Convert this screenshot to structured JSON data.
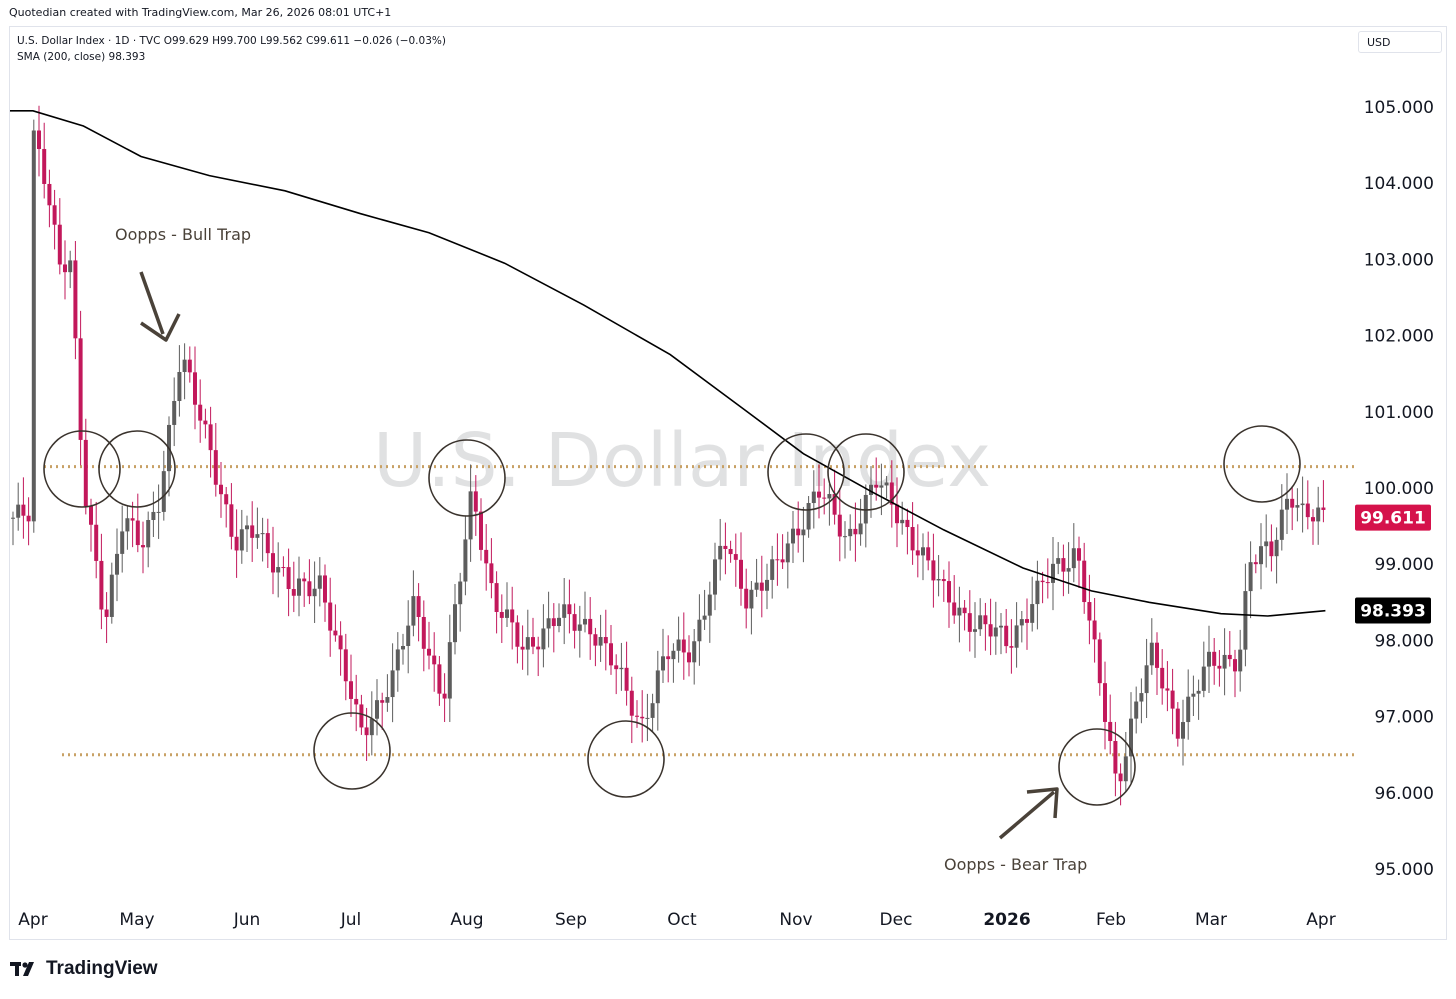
{
  "header": {
    "attribution": "Quotedian created with TradingView.com, Mar 26, 2026 08:01 UTC+1"
  },
  "legend": {
    "symbol_line": "U.S. Dollar Index · 1D · TVC  O99.629  H99.700  L99.562  C99.611  −0.026 (−0.03%)",
    "sma_line": "SMA (200, close)  98.393"
  },
  "currency_label": "USD",
  "watermark": "U.S. Dollar Index",
  "footer": {
    "brand": "TradingView"
  },
  "colors": {
    "up": "#5d5d5d",
    "down": "#c2185b",
    "sma": "#000000",
    "level": "#c8a165",
    "last_price_bg": "#d5124b"
  },
  "chart_data": {
    "type": "candlestick",
    "title": "U.S. Dollar Index",
    "ylim": [
      94.5,
      105.5
    ],
    "y_ticks": [
      "105.000",
      "104.000",
      "103.000",
      "102.000",
      "101.000",
      "100.000",
      "99.000",
      "98.000",
      "97.000",
      "96.000",
      "95.000"
    ],
    "x_labels": [
      "Apr",
      "May",
      "Jun",
      "Jul",
      "Aug",
      "Sep",
      "Oct",
      "Nov",
      "Dec",
      "2026",
      "Feb",
      "Mar",
      "Apr"
    ],
    "last_price": {
      "label": "99.611",
      "value": 99.611
    },
    "sma_label": {
      "label": "98.393",
      "value": 98.393
    },
    "levels": [
      100.28,
      96.5
    ],
    "annotations": [
      {
        "text": "Oopps - Bull Trap"
      },
      {
        "text": "Oopps - Bear Trap"
      }
    ],
    "sma_series": [
      {
        "d": "2025-04-01",
        "v": 104.95
      },
      {
        "d": "2025-04-15",
        "v": 104.75
      },
      {
        "d": "2025-05-01",
        "v": 104.35
      },
      {
        "d": "2025-05-20",
        "v": 104.1
      },
      {
        "d": "2025-06-10",
        "v": 103.9
      },
      {
        "d": "2025-07-01",
        "v": 103.6
      },
      {
        "d": "2025-07-20",
        "v": 103.35
      },
      {
        "d": "2025-08-10",
        "v": 102.95
      },
      {
        "d": "2025-09-01",
        "v": 102.4
      },
      {
        "d": "2025-09-25",
        "v": 101.75
      },
      {
        "d": "2025-10-15",
        "v": 101.05
      },
      {
        "d": "2025-11-01",
        "v": 100.45
      },
      {
        "d": "2025-11-20",
        "v": 99.95
      },
      {
        "d": "2025-12-10",
        "v": 99.45
      },
      {
        "d": "2026-01-01",
        "v": 98.95
      },
      {
        "d": "2026-01-20",
        "v": 98.65
      },
      {
        "d": "2026-02-05",
        "v": 98.5
      },
      {
        "d": "2026-02-25",
        "v": 98.35
      },
      {
        "d": "2026-03-10",
        "v": 98.32
      },
      {
        "d": "2026-03-26",
        "v": 98.39
      }
    ],
    "price_path": [
      {
        "d": "2025-04-01",
        "v": 104.6
      },
      {
        "d": "2025-04-05",
        "v": 104.0
      },
      {
        "d": "2025-04-09",
        "v": 102.8
      },
      {
        "d": "2025-04-11",
        "v": 103.2
      },
      {
        "d": "2025-04-15",
        "v": 100.0
      },
      {
        "d": "2025-04-21",
        "v": 98.3
      },
      {
        "d": "2025-04-26",
        "v": 99.6
      },
      {
        "d": "2025-05-01",
        "v": 99.2
      },
      {
        "d": "2025-05-06",
        "v": 99.9
      },
      {
        "d": "2025-05-12",
        "v": 101.7
      },
      {
        "d": "2025-05-20",
        "v": 100.6
      },
      {
        "d": "2025-05-27",
        "v": 99.2
      },
      {
        "d": "2025-06-02",
        "v": 99.5
      },
      {
        "d": "2025-06-12",
        "v": 98.6
      },
      {
        "d": "2025-06-20",
        "v": 98.8
      },
      {
        "d": "2025-06-25",
        "v": 97.8
      },
      {
        "d": "2025-07-01",
        "v": 96.8
      },
      {
        "d": "2025-07-10",
        "v": 97.5
      },
      {
        "d": "2025-07-16",
        "v": 98.5
      },
      {
        "d": "2025-07-24",
        "v": 97.2
      },
      {
        "d": "2025-08-01",
        "v": 100.0
      },
      {
        "d": "2025-08-07",
        "v": 98.5
      },
      {
        "d": "2025-08-15",
        "v": 97.9
      },
      {
        "d": "2025-08-25",
        "v": 98.3
      },
      {
        "d": "2025-09-03",
        "v": 98.2
      },
      {
        "d": "2025-09-10",
        "v": 97.6
      },
      {
        "d": "2025-09-17",
        "v": 96.9
      },
      {
        "d": "2025-09-24",
        "v": 97.8
      },
      {
        "d": "2025-10-01",
        "v": 97.9
      },
      {
        "d": "2025-10-10",
        "v": 99.3
      },
      {
        "d": "2025-10-16",
        "v": 98.6
      },
      {
        "d": "2025-10-24",
        "v": 98.9
      },
      {
        "d": "2025-11-05",
        "v": 100.0
      },
      {
        "d": "2025-11-13",
        "v": 99.3
      },
      {
        "d": "2025-11-21",
        "v": 100.1
      },
      {
        "d": "2025-12-02",
        "v": 99.3
      },
      {
        "d": "2025-12-10",
        "v": 98.6
      },
      {
        "d": "2025-12-19",
        "v": 98.2
      },
      {
        "d": "2025-12-28",
        "v": 98.0
      },
      {
        "d": "2026-01-09",
        "v": 98.9
      },
      {
        "d": "2026-01-16",
        "v": 99.2
      },
      {
        "d": "2026-01-22",
        "v": 97.5
      },
      {
        "d": "2026-01-27",
        "v": 96.1
      },
      {
        "d": "2026-02-02",
        "v": 97.3
      },
      {
        "d": "2026-02-06",
        "v": 97.8
      },
      {
        "d": "2026-02-13",
        "v": 96.9
      },
      {
        "d": "2026-02-22",
        "v": 97.7
      },
      {
        "d": "2026-03-02",
        "v": 97.8
      },
      {
        "d": "2026-03-05",
        "v": 99.0
      },
      {
        "d": "2026-03-11",
        "v": 99.2
      },
      {
        "d": "2026-03-16",
        "v": 100.0
      },
      {
        "d": "2026-03-20",
        "v": 99.6
      },
      {
        "d": "2026-03-26",
        "v": 99.61
      }
    ]
  }
}
